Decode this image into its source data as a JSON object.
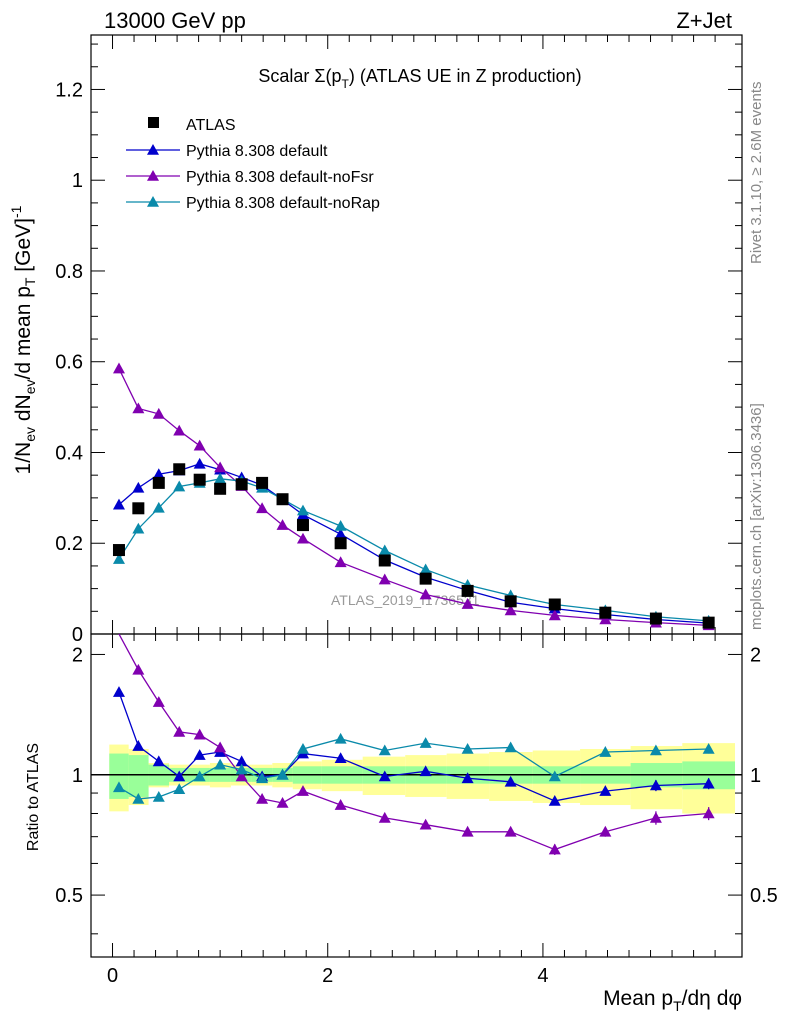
{
  "header": {
    "left": "13000 GeV pp",
    "right": "Z+Jet"
  },
  "side_labels": {
    "rivet": "Rivet 3.1.10, ≥ 2.6M events",
    "mcplots": "mcplots.cern.ch [arXiv:1306.3436]"
  },
  "watermark": "ATLAS_2019_I1736531",
  "chart_data": {
    "type": "line",
    "title": "Scalar Σ(p_T) (ATLAS UE in Z production)",
    "xlabel": "Mean p_T/dη dφ",
    "ylabel": "1/N_ev dN_ev/d mean p_T [GeV]^-1",
    "ratio_ylabel": "Ratio to ATLAS",
    "xlim": [
      -0.2,
      5.85
    ],
    "ylim": [
      0,
      1.32
    ],
    "ratio_ylim": [
      0.35,
      2.25
    ],
    "ratio_scale": "log",
    "x_ticks": [
      "0",
      "2",
      "4"
    ],
    "y_ticks": [
      "0",
      "0.2",
      "0.4",
      "0.6",
      "0.8",
      "1",
      "1.2"
    ],
    "ratio_ticks": [
      "0.5",
      "1",
      "2"
    ],
    "legend": [
      {
        "label": "ATLAS",
        "color": "#000000",
        "marker": "square"
      },
      {
        "label": "Pythia 8.308 default",
        "color": "#0000cc",
        "marker": "triangle"
      },
      {
        "label": "Pythia 8.308 default-noFsr",
        "color": "#8000b0",
        "marker": "triangle"
      },
      {
        "label": "Pythia 8.308 default-noRap",
        "color": "#0a8aaa",
        "marker": "triangle"
      }
    ],
    "x": [
      0.06,
      0.24,
      0.43,
      0.62,
      0.81,
      1.0,
      1.2,
      1.39,
      1.58,
      1.77,
      2.12,
      2.53,
      2.91,
      3.3,
      3.7,
      4.11,
      4.58,
      5.05,
      5.54
    ],
    "series": [
      {
        "name": "ATLAS",
        "values": [
          0.185,
          0.277,
          0.333,
          0.363,
          0.34,
          0.32,
          0.33,
          0.333,
          0.297,
          0.24,
          0.2,
          0.162,
          0.122,
          0.095,
          0.072,
          0.065,
          0.047,
          0.034,
          0.025
        ]
      },
      {
        "name": "Pythia 8.308 default",
        "values": [
          0.285,
          0.322,
          0.352,
          0.36,
          0.375,
          0.362,
          0.345,
          0.328,
          0.296,
          0.263,
          0.22,
          0.163,
          0.125,
          0.096,
          0.07,
          0.056,
          0.043,
          0.032,
          0.024
        ]
      },
      {
        "name": "Pythia 8.308 default-noFsr",
        "values": [
          0.585,
          0.497,
          0.485,
          0.448,
          0.415,
          0.367,
          0.326,
          0.277,
          0.24,
          0.21,
          0.158,
          0.12,
          0.087,
          0.066,
          0.052,
          0.041,
          0.032,
          0.025,
          0.019
        ]
      },
      {
        "name": "Pythia 8.308 default-noRap",
        "values": [
          0.165,
          0.232,
          0.278,
          0.325,
          0.333,
          0.342,
          0.337,
          0.322,
          0.297,
          0.272,
          0.238,
          0.184,
          0.142,
          0.108,
          0.085,
          0.065,
          0.052,
          0.038,
          0.029
        ]
      }
    ],
    "ratios": [
      {
        "name": "Pythia 8.308 default",
        "values": [
          1.61,
          1.18,
          1.08,
          0.99,
          1.12,
          1.14,
          1.08,
          0.99,
          1.0,
          1.13,
          1.1,
          0.99,
          1.02,
          0.98,
          0.96,
          0.86,
          0.91,
          0.94,
          0.95
        ]
      },
      {
        "name": "Pythia 8.308 default-noFsr",
        "values": [
          2.45,
          1.83,
          1.52,
          1.28,
          1.26,
          1.17,
          0.99,
          0.87,
          0.85,
          0.91,
          0.84,
          0.78,
          0.75,
          0.72,
          0.72,
          0.65,
          0.72,
          0.78,
          0.8
        ]
      },
      {
        "name": "Pythia 8.308 default-noRap",
        "values": [
          0.93,
          0.87,
          0.88,
          0.92,
          0.99,
          1.06,
          1.03,
          0.98,
          1.0,
          1.16,
          1.23,
          1.15,
          1.2,
          1.16,
          1.17,
          0.99,
          1.14,
          1.15,
          1.16
        ]
      }
    ],
    "band_green": [
      0.13,
      0.12,
      0.06,
      0.04,
      0.04,
      0.04,
      0.04,
      0.04,
      0.04,
      0.05,
      0.05,
      0.05,
      0.05,
      0.05,
      0.05,
      0.05,
      0.05,
      0.07,
      0.08
    ],
    "band_yellow": [
      0.19,
      0.16,
      0.07,
      0.06,
      0.06,
      0.07,
      0.06,
      0.06,
      0.07,
      0.08,
      0.09,
      0.11,
      0.12,
      0.13,
      0.14,
      0.15,
      0.16,
      0.18,
      0.2
    ],
    "ratio_errors": [
      0,
      0,
      0,
      0,
      0,
      0,
      0,
      0,
      0,
      0,
      0,
      0,
      0,
      0,
      0,
      0.02,
      0.02,
      0.03,
      0.03
    ]
  }
}
